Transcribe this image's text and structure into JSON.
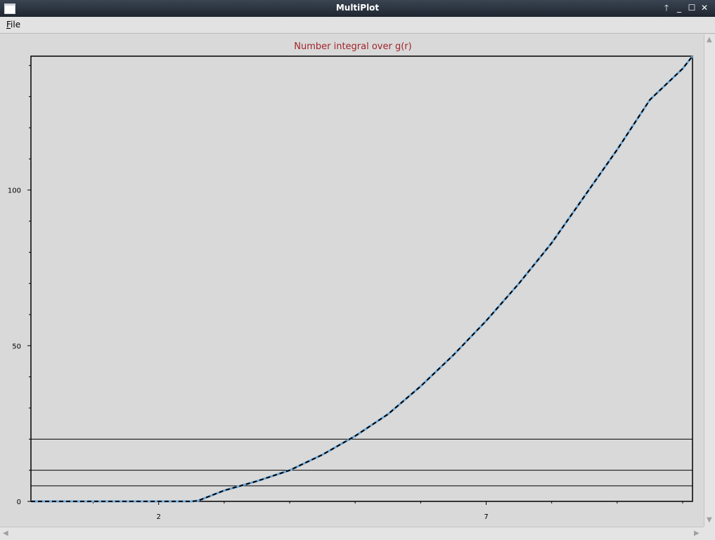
{
  "window": {
    "title": "MultiPlot",
    "buttons": {
      "shade": "🡑",
      "minimize": "_",
      "maximize": "☐",
      "close": "✕"
    }
  },
  "menu": {
    "file_prefix": "F",
    "file_rest": "ile"
  },
  "colors": {
    "plot_bg": "#d9d9d9",
    "title": "#a0242a",
    "curve_solid": "#6ea8d8",
    "curve_dash": "#000000"
  },
  "chart_data": {
    "type": "line",
    "title": "Number integral over g(r)",
    "xlabel": "",
    "ylabel": "",
    "xlim": [
      0.05,
      10.15
    ],
    "ylim": [
      0,
      143
    ],
    "xticks_major": [
      2,
      7
    ],
    "yticks_major": [
      0,
      50,
      100
    ],
    "xticks_minor": [
      1,
      3,
      4,
      5,
      6,
      8,
      9,
      10
    ],
    "yticks_minor": [
      10,
      20,
      30,
      40,
      60,
      70,
      80,
      90,
      110,
      120,
      130,
      140
    ],
    "hlines": [
      5,
      10,
      20
    ],
    "grid": false,
    "series": [
      {
        "x": [
          0.05,
          0.5,
          1.0,
          1.5,
          2.0,
          2.5,
          2.6,
          3.0,
          3.5,
          4.0,
          4.5,
          5.0,
          5.5,
          6.0,
          6.5,
          7.0,
          7.5,
          8.0,
          8.5,
          9.0,
          9.5,
          10.0,
          10.15
        ],
        "y": [
          0,
          0,
          0,
          0,
          0,
          0,
          0.2,
          3.5,
          6.5,
          10,
          15,
          21,
          28,
          37,
          47,
          58,
          70,
          83,
          98,
          113,
          129,
          139,
          143
        ]
      }
    ]
  }
}
